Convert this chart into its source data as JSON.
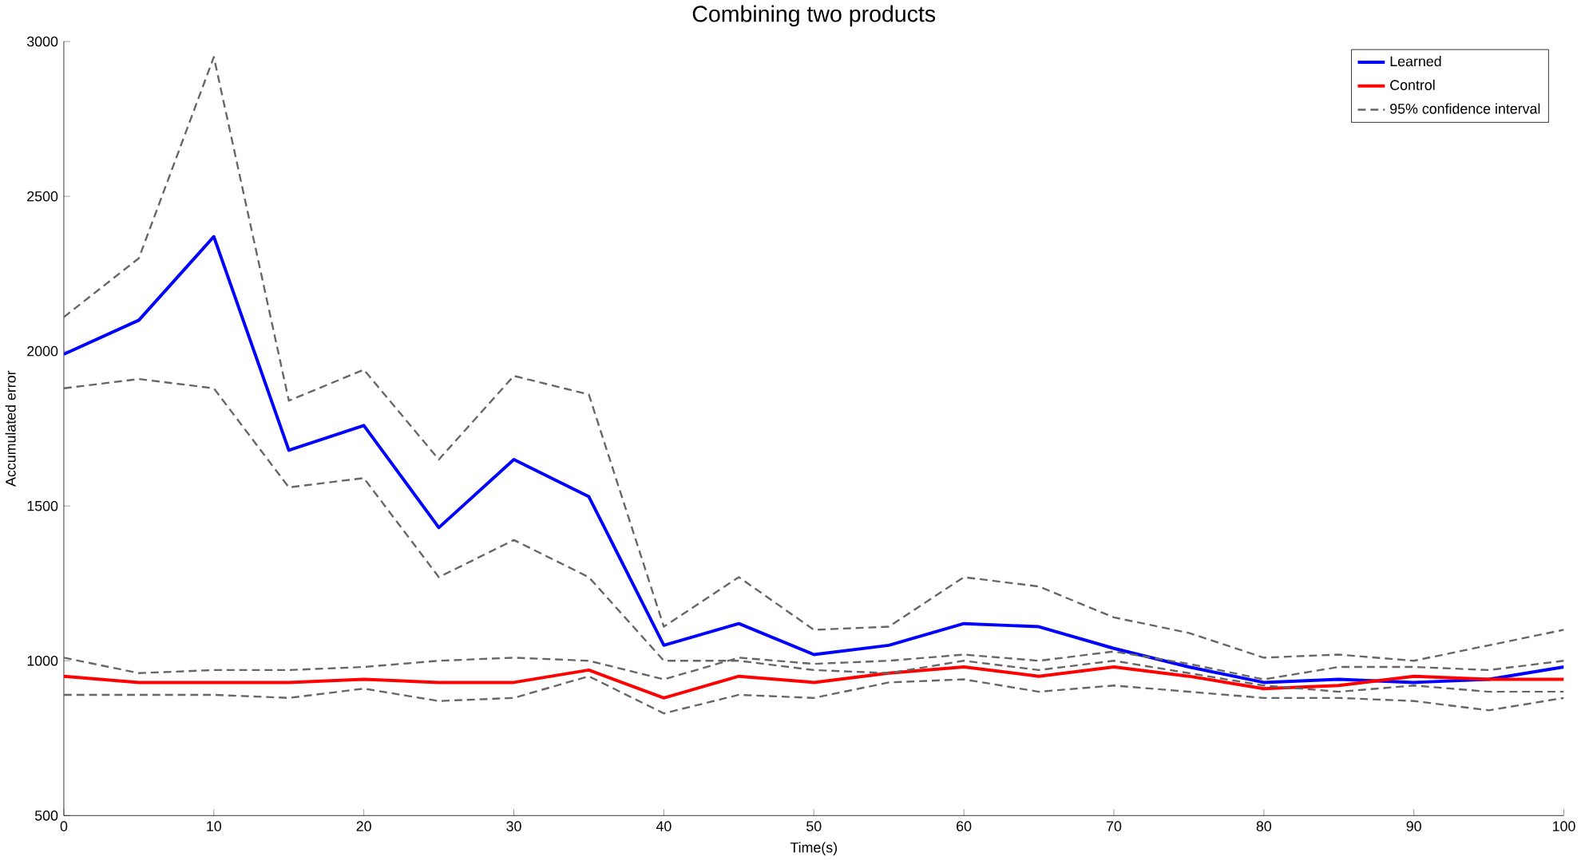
{
  "chart_data": {
    "type": "line",
    "title": "Combining two products",
    "xlabel": "Time(s)",
    "ylabel": "Accumulated error",
    "x": [
      0,
      5,
      10,
      15,
      20,
      25,
      30,
      35,
      40,
      45,
      50,
      55,
      60,
      65,
      70,
      75,
      80,
      85,
      90,
      95,
      100
    ],
    "series": [
      {
        "name": "Learned",
        "color": "#0000ff",
        "line_style": "solid",
        "values": [
          1990,
          2100,
          2370,
          1680,
          1760,
          1430,
          1650,
          1530,
          1050,
          1120,
          1020,
          1050,
          1120,
          1110,
          1040,
          980,
          930,
          940,
          930,
          940,
          980
        ]
      },
      {
        "name": "Control",
        "color": "#ff0000",
        "line_style": "solid",
        "values": [
          950,
          930,
          930,
          930,
          940,
          930,
          930,
          970,
          880,
          950,
          930,
          960,
          980,
          950,
          980,
          950,
          910,
          920,
          950,
          940,
          940
        ]
      },
      {
        "name": "95% confidence interval",
        "color": "#666666",
        "line_style": "dashed",
        "values": [
          2110,
          2300,
          2950,
          1840,
          1940,
          1650,
          1920,
          1860,
          1110,
          1270,
          1100,
          1110,
          1270,
          1240,
          1140,
          1090,
          1010,
          1020,
          1000,
          1050,
          1100
        ]
      },
      {
        "color": "#666666",
        "line_style": "dashed",
        "values": [
          1880,
          1910,
          1880,
          1560,
          1590,
          1270,
          1390,
          1270,
          1000,
          1000,
          970,
          960,
          1000,
          970,
          1000,
          960,
          920,
          900,
          920,
          900,
          900
        ]
      },
      {
        "color": "#666666",
        "line_style": "dashed",
        "values": [
          1010,
          960,
          970,
          970,
          980,
          1000,
          1010,
          1000,
          940,
          1010,
          990,
          1000,
          1020,
          1000,
          1030,
          990,
          940,
          980,
          980,
          970,
          1000
        ]
      },
      {
        "color": "#666666",
        "line_style": "dashed",
        "values": [
          890,
          890,
          890,
          880,
          910,
          870,
          880,
          950,
          830,
          890,
          880,
          930,
          940,
          900,
          920,
          900,
          880,
          880,
          870,
          840,
          880
        ]
      }
    ],
    "xlim": [
      0,
      100
    ],
    "ylim": [
      500,
      3000
    ],
    "xticks": [
      0,
      10,
      20,
      30,
      40,
      50,
      60,
      70,
      80,
      90,
      100
    ],
    "yticks": [
      500,
      1000,
      1500,
      2000,
      2500,
      3000
    ],
    "grid": false,
    "legend": "top right",
    "marker": "none"
  }
}
